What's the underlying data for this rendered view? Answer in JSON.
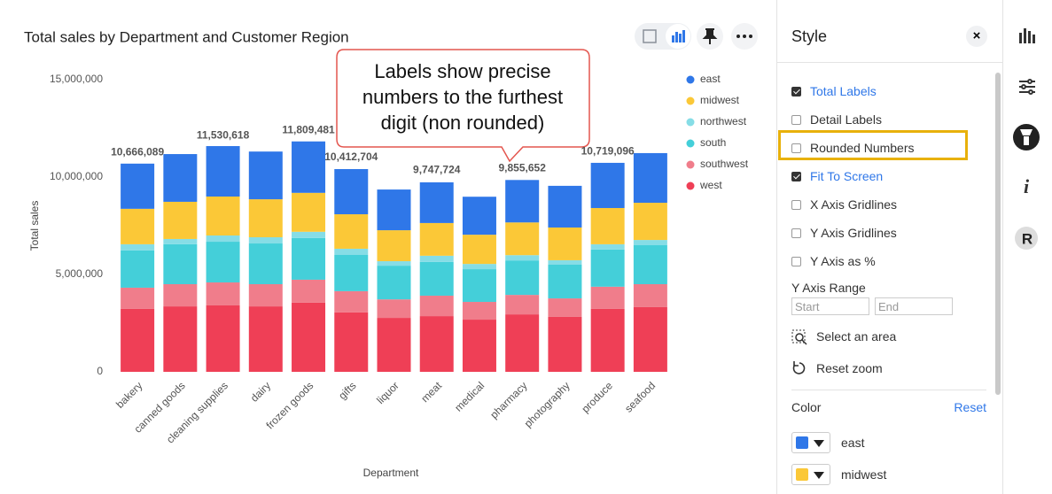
{
  "header": {
    "title": "Total sales by Department and Customer Region"
  },
  "chart_data": {
    "type": "stacked-bar",
    "x_label": "Department",
    "y_label": "Total sales",
    "categories": [
      "bakery",
      "canned goods",
      "cleaning supplies",
      "dairy",
      "frozen goods",
      "gifts",
      "liquor",
      "meat",
      "medical",
      "pharmacy",
      "photography",
      "produce",
      "seafood"
    ],
    "series": [
      {
        "name": "east",
        "color": "#2f77e8",
        "values": [
          2320000,
          2450000,
          2590000,
          2450000,
          2640000,
          2320000,
          2090000,
          2090000,
          1950000,
          2180000,
          2140000,
          2320000,
          2550000
        ]
      },
      {
        "name": "midwest",
        "color": "#fbc837",
        "values": [
          1820000,
          1910000,
          2000000,
          1950000,
          2000000,
          1770000,
          1590000,
          1680000,
          1500000,
          1680000,
          1680000,
          1860000,
          1910000
        ]
      },
      {
        "name": "northwest",
        "color": "#86dde6",
        "values": [
          320000,
          270000,
          320000,
          320000,
          320000,
          320000,
          230000,
          320000,
          270000,
          270000,
          230000,
          270000,
          270000
        ]
      },
      {
        "name": "south",
        "color": "#44cfd9",
        "values": [
          1910000,
          2050000,
          2090000,
          2090000,
          2140000,
          1860000,
          1730000,
          1730000,
          1680000,
          1770000,
          1730000,
          1910000,
          2000000
        ]
      },
      {
        "name": "southwest",
        "color": "#f07d8b",
        "values": [
          1090000,
          1140000,
          1180000,
          1140000,
          1180000,
          1090000,
          950000,
          1050000,
          910000,
          1000000,
          950000,
          1140000,
          1180000
        ]
      },
      {
        "name": "west",
        "color": "#ef3f56",
        "values": [
          3230000,
          3360000,
          3410000,
          3360000,
          3550000,
          3050000,
          2770000,
          2860000,
          2680000,
          2950000,
          2820000,
          3230000,
          3320000
        ]
      }
    ],
    "totals": [
      10666089,
      null,
      11530618,
      null,
      11809481,
      10412704,
      null,
      9747724,
      null,
      9855652,
      null,
      10719096,
      null
    ],
    "total_labels": [
      "10,666,089",
      null,
      "11,530,618",
      null,
      "11,809,481",
      "10,412,704",
      null,
      "9,747,724",
      null,
      "9,855,652",
      null,
      "10,719,096",
      null
    ],
    "ylim": [
      0,
      15000000
    ],
    "yticks": [
      0,
      {
        "value": 5000000,
        "label": "5,000,000"
      },
      {
        "value": 10000000,
        "label": "10,000,000"
      },
      {
        "value": 15000000,
        "label": "15,000,000"
      }
    ],
    "grid": false,
    "legend": "top-right",
    "annotation_lines": [
      "Labels show precise",
      "numbers to the furthest",
      "digit (non rounded)"
    ]
  },
  "style_panel": {
    "title": "Style",
    "options": [
      {
        "label": "Total Labels",
        "checked": true
      },
      {
        "label": "Detail Labels",
        "checked": false
      },
      {
        "label": "Rounded Numbers",
        "checked": false,
        "highlighted": true
      },
      {
        "label": "Fit To Screen",
        "checked": true
      },
      {
        "label": "X Axis Gridlines",
        "checked": false
      },
      {
        "label": "Y Axis Gridlines",
        "checked": false
      },
      {
        "label": "Y Axis as %",
        "checked": false
      }
    ],
    "y_axis_range": {
      "label": "Y Axis Range",
      "start": "Start",
      "end": "End"
    },
    "actions": [
      "Select an area",
      "Reset zoom"
    ],
    "color": {
      "label": "Color",
      "reset": "Reset"
    }
  }
}
